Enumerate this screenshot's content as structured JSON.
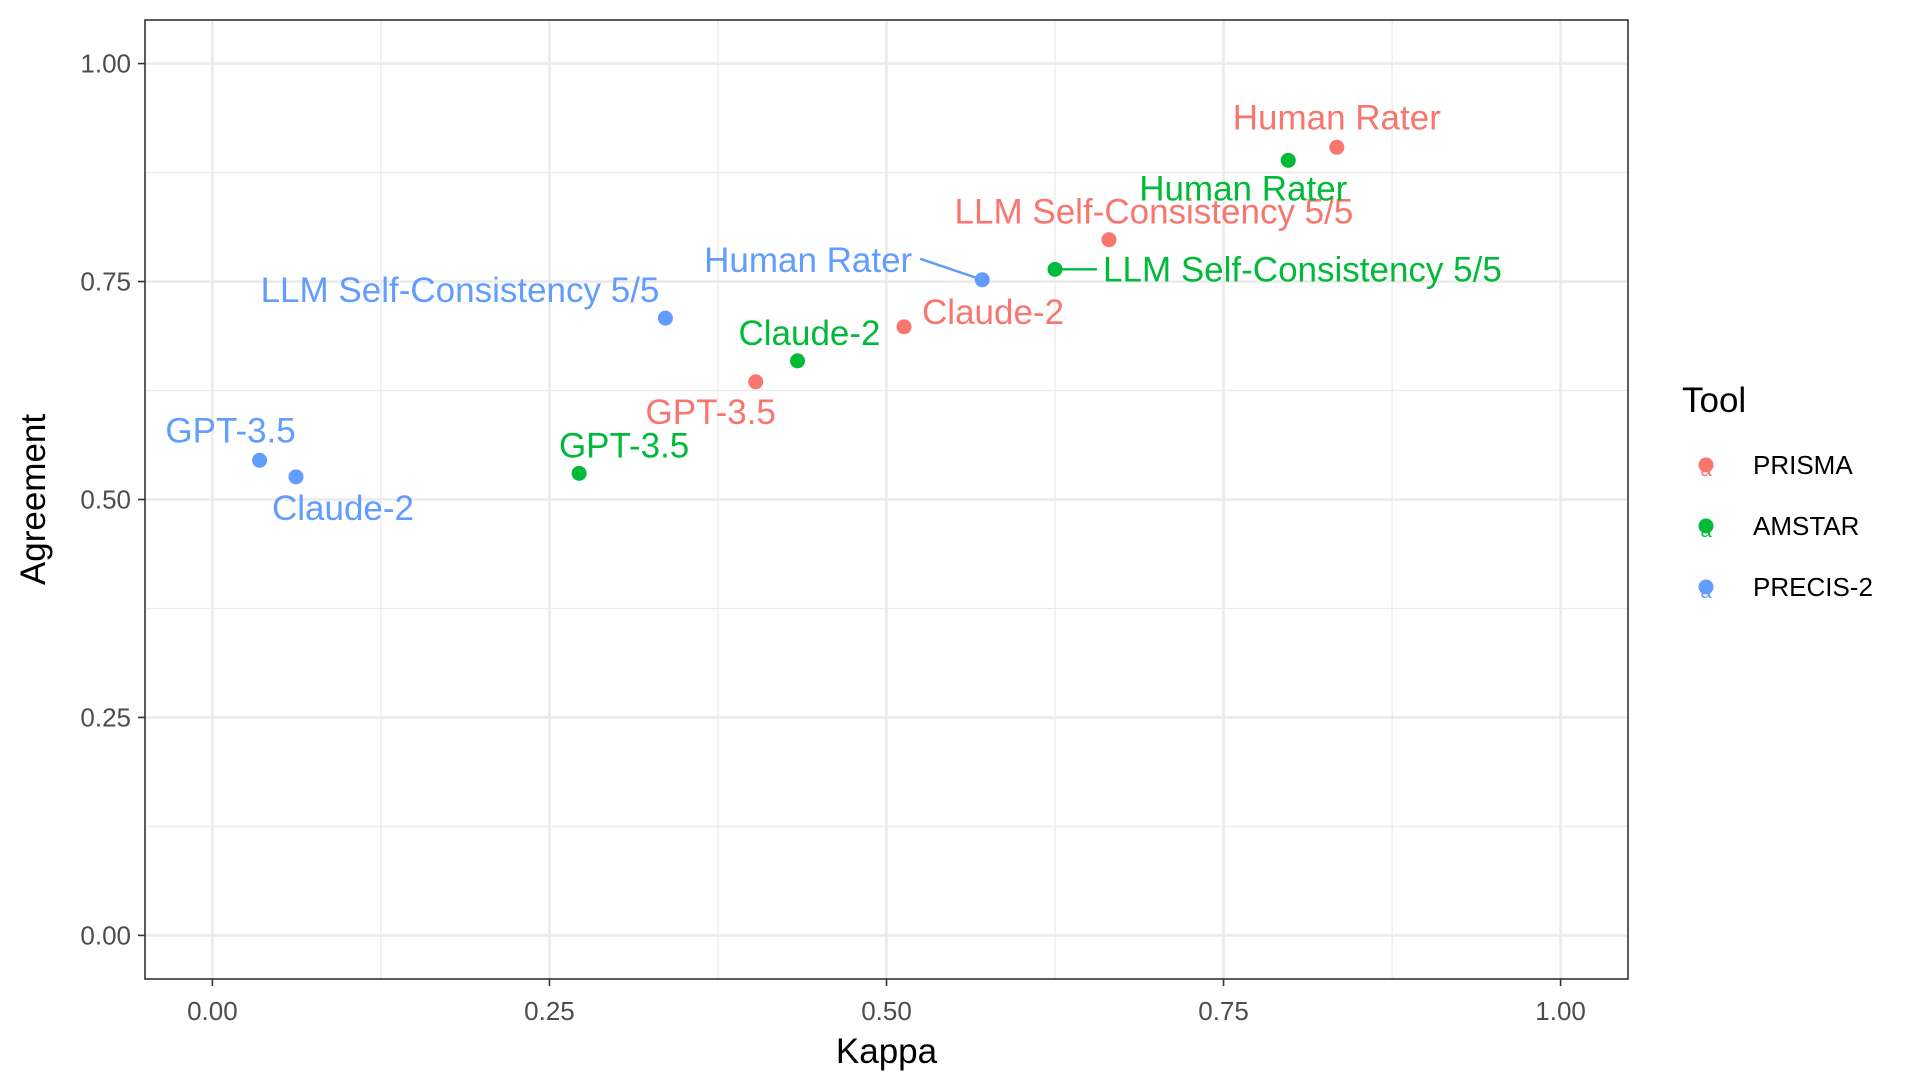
{
  "chart_data": {
    "type": "scatter",
    "xlabel": "Kappa",
    "ylabel": "Agreement",
    "xlim": [
      -0.05,
      1.05
    ],
    "ylim": [
      -0.05,
      1.05
    ],
    "x_ticks": [
      0,
      0.25,
      0.5,
      0.75,
      1
    ],
    "y_ticks": [
      0,
      0.25,
      0.5,
      0.75,
      1
    ],
    "x_tick_labels": [
      "0.00",
      "0.25",
      "0.50",
      "0.75",
      "1.00"
    ],
    "y_tick_labels": [
      "0.00",
      "0.25",
      "0.50",
      "0.75",
      "1.00"
    ],
    "grid": true,
    "legend": {
      "title": "Tool",
      "position": "right"
    },
    "series": [
      {
        "name": "PRISMA",
        "color": "#F8766D",
        "points": [
          {
            "label": "Human Rater",
            "x": 0.834,
            "y": 0.904
          },
          {
            "label": "LLM Self-Consistency 5/5",
            "x": 0.665,
            "y": 0.798
          },
          {
            "label": "Claude-2",
            "x": 0.513,
            "y": 0.698
          },
          {
            "label": "GPT-3.5",
            "x": 0.403,
            "y": 0.635
          }
        ]
      },
      {
        "name": "AMSTAR",
        "color": "#00BA38",
        "points": [
          {
            "label": "Human Rater",
            "x": 0.798,
            "y": 0.889
          },
          {
            "label": "LLM Self-Consistency 5/5",
            "x": 0.625,
            "y": 0.764
          },
          {
            "label": "Claude-2",
            "x": 0.434,
            "y": 0.659
          },
          {
            "label": "GPT-3.5",
            "x": 0.272,
            "y": 0.53
          }
        ]
      },
      {
        "name": "PRECIS-2",
        "color": "#619CFF",
        "points": [
          {
            "label": "Human Rater",
            "x": 0.571,
            "y": 0.752
          },
          {
            "label": "LLM Self-Consistency 5/5",
            "x": 0.336,
            "y": 0.708
          },
          {
            "label": "GPT-3.5",
            "x": 0.035,
            "y": 0.545
          },
          {
            "label": "Claude-2",
            "x": 0.062,
            "y": 0.526
          }
        ]
      }
    ]
  }
}
